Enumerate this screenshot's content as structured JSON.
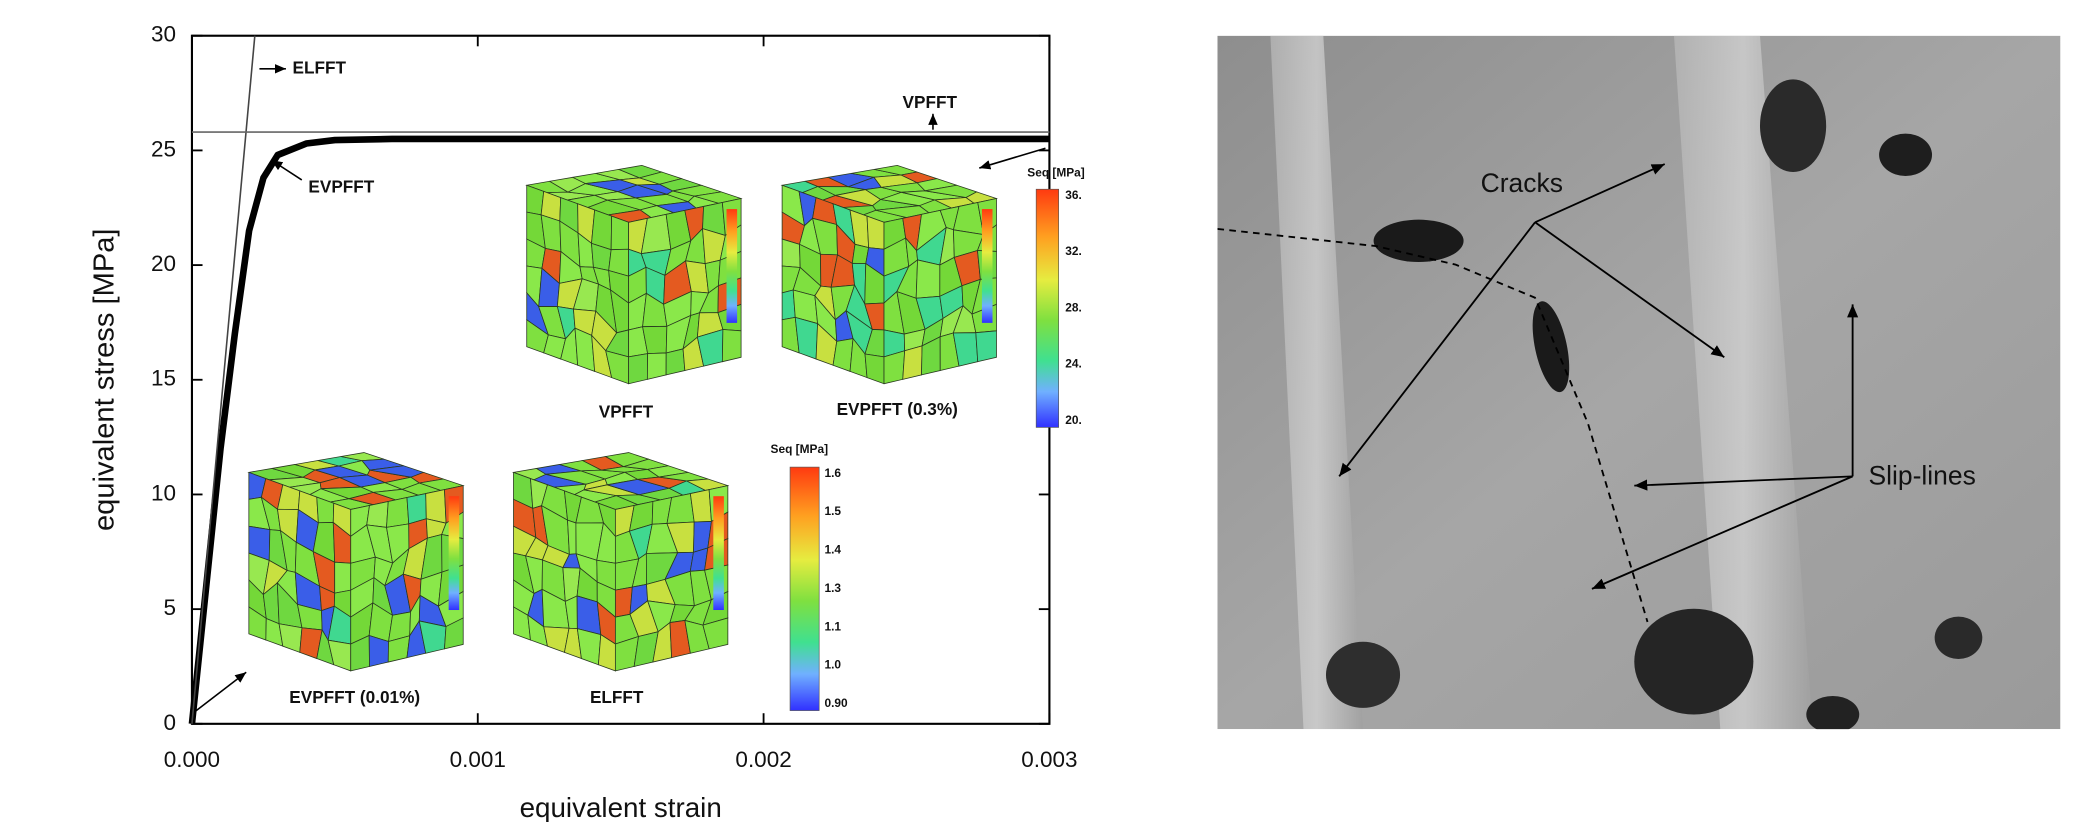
{
  "chart_data": {
    "type": "line",
    "x_label": "equivalent strain",
    "y_label": "equivalent stress [MPa]",
    "xlim": [
      0,
      0.003
    ],
    "ylim": [
      0,
      30
    ],
    "xticks": [
      {
        "value": 0,
        "label": "0.000"
      },
      {
        "value": 0.001,
        "label": "0.001"
      },
      {
        "value": 0.002,
        "label": "0.002"
      },
      {
        "value": 0.003,
        "label": "0.003"
      }
    ],
    "yticks": [
      0,
      5,
      10,
      15,
      20,
      25,
      30
    ],
    "series": [
      {
        "name": "EVPFFT",
        "color": "#000000",
        "x": [
          0,
          5e-05,
          0.0001,
          0.00015,
          0.0002,
          0.00025,
          0.0003,
          0.0004,
          0.0005,
          0.0007,
          0.001,
          0.002,
          0.003
        ],
        "values": [
          0,
          6,
          12,
          17,
          21.5,
          23.8,
          24.8,
          25.3,
          25.45,
          25.5,
          25.5,
          25.5,
          25.5
        ]
      },
      {
        "name": "ELFFT",
        "color": "#444444",
        "x": [
          0,
          0.00022
        ],
        "values": [
          0,
          30
        ]
      },
      {
        "name": "VPFFT",
        "color": "#666666",
        "x": [
          0,
          0.003
        ],
        "values": [
          25.8,
          25.8
        ]
      }
    ],
    "insets": [
      {
        "label": "VPFFT"
      },
      {
        "label": "EVPFFT (0.3%)"
      },
      {
        "label": "EVPFFT (0.01%)"
      },
      {
        "label": "ELFFT"
      }
    ],
    "colorbars": [
      {
        "title": "Seq [MPa]",
        "ticks": [
          "36.",
          "32.",
          "28.",
          "24.",
          "20."
        ]
      },
      {
        "title": "Seq [MPa]",
        "ticks": [
          "1.6",
          "1.5",
          "1.4",
          "1.3",
          "1.1",
          "1.0",
          "0.90"
        ]
      }
    ]
  },
  "micrograph": {
    "labels": [
      "Cracks",
      "Slip-lines"
    ]
  }
}
